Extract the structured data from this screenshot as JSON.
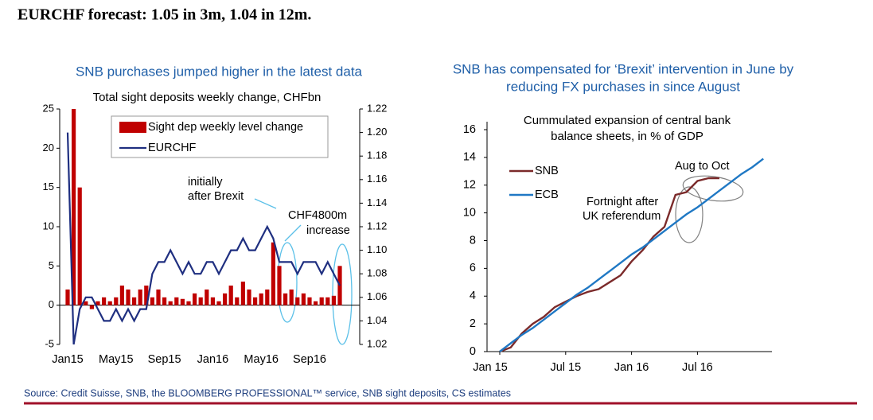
{
  "title": "EURCHF forecast: 1.05 in 3m, 1.04 in 12m.",
  "source": "Source: Credit Suisse, SNB, the BLOOMBERG PROFESSIONAL™ service, SNB sight deposits, CS estimates",
  "chart_data": [
    {
      "type": "bar",
      "title": "SNB purchases jumped higher in the latest data",
      "subtitle": "Total sight deposits weekly change, CHFbn",
      "annotations": [
        "initially",
        "after Brexit",
        "CHF4800m",
        "increase"
      ],
      "categories": [
        "Jan15",
        null,
        null,
        null,
        null,
        null,
        null,
        null,
        "May15",
        null,
        null,
        null,
        null,
        null,
        null,
        null,
        "Sep15",
        null,
        null,
        null,
        null,
        null,
        null,
        null,
        "Jan16",
        null,
        null,
        null,
        null,
        null,
        null,
        null,
        "May16",
        null,
        null,
        null,
        null,
        null,
        null,
        null,
        "Sep16",
        null,
        null,
        null,
        null,
        null
      ],
      "series": [
        {
          "name": "Sight dep weekly level change",
          "color": "#c00000",
          "type": "bar",
          "values": [
            2,
            25,
            15,
            0.5,
            -0.5,
            0.5,
            1,
            0.5,
            1,
            2.5,
            2,
            1,
            2,
            2.5,
            1,
            2,
            1,
            0.5,
            1,
            0.8,
            0.5,
            1.5,
            1,
            2,
            1,
            0.5,
            1.5,
            2.5,
            1,
            3,
            2,
            1,
            1.5,
            2,
            8,
            5,
            1.5,
            2,
            1,
            1.5,
            1,
            0.5,
            1,
            1,
            1.2,
            5
          ]
        },
        {
          "name": "EURCHF",
          "color": "#1f2f80",
          "type": "line",
          "axis": "y2",
          "values": [
            1.2,
            1.02,
            1.05,
            1.06,
            1.06,
            1.05,
            1.04,
            1.04,
            1.05,
            1.04,
            1.05,
            1.04,
            1.05,
            1.05,
            1.08,
            1.09,
            1.09,
            1.1,
            1.09,
            1.08,
            1.09,
            1.08,
            1.08,
            1.09,
            1.09,
            1.08,
            1.09,
            1.1,
            1.1,
            1.11,
            1.1,
            1.1,
            1.11,
            1.12,
            1.11,
            1.09,
            1.09,
            1.09,
            1.08,
            1.09,
            1.09,
            1.09,
            1.08,
            1.09,
            1.08,
            1.07
          ]
        }
      ],
      "ylim": [
        -5,
        25
      ],
      "yticks": [
        -5,
        0,
        5,
        10,
        15,
        20,
        25
      ],
      "y2lim": [
        1.02,
        1.22
      ],
      "y2ticks": [
        1.02,
        1.04,
        1.06,
        1.08,
        {
          "value": 1.1,
          "label": "1.10"
        },
        1.12,
        1.14,
        1.16,
        1.18,
        {
          "value": 1.2,
          "label": "1.20"
        },
        1.22
      ],
      "legend": "top-left",
      "grid": false
    },
    {
      "type": "line",
      "title": [
        "SNB has compensated for ‘Brexit’ intervention in June by",
        "reducing FX purchases in since August"
      ],
      "subtitle": [
        "Cummulated expansion of central bank",
        "balance sheets, in % of GDP"
      ],
      "annotations": [
        "Aug to Oct",
        "Fortnight after",
        "UK referendum"
      ],
      "categories": [
        "Jan 15",
        null,
        null,
        null,
        null,
        null,
        "Jul 15",
        null,
        null,
        null,
        null,
        null,
        "Jan 16",
        null,
        null,
        null,
        null,
        null,
        "Jul 16",
        null,
        null,
        null,
        null,
        null,
        null
      ],
      "series": [
        {
          "name": "SNB",
          "color": "#7b2a2a",
          "values": [
            0,
            0.3,
            1.3,
            2.0,
            2.5,
            3.2,
            3.6,
            4.0,
            4.3,
            4.5,
            5.0,
            5.5,
            6.5,
            7.3,
            8.3,
            9.0,
            11.3,
            11.5,
            12.3,
            12.5,
            12.5,
            null,
            null,
            null,
            null
          ]
        },
        {
          "name": "ECB",
          "color": "#1f78c4",
          "values": [
            0,
            0.6,
            1.2,
            1.7,
            2.3,
            2.9,
            3.5,
            4.1,
            4.6,
            5.2,
            5.8,
            6.4,
            7.0,
            7.5,
            8.1,
            8.7,
            9.3,
            9.9,
            10.4,
            11.0,
            11.6,
            12.2,
            12.8,
            13.3,
            13.9
          ]
        }
      ],
      "ylim": [
        0,
        16
      ],
      "yticks": [
        0,
        2,
        4,
        6,
        8,
        10,
        12,
        14,
        16
      ],
      "legend": "left",
      "grid": false
    }
  ]
}
